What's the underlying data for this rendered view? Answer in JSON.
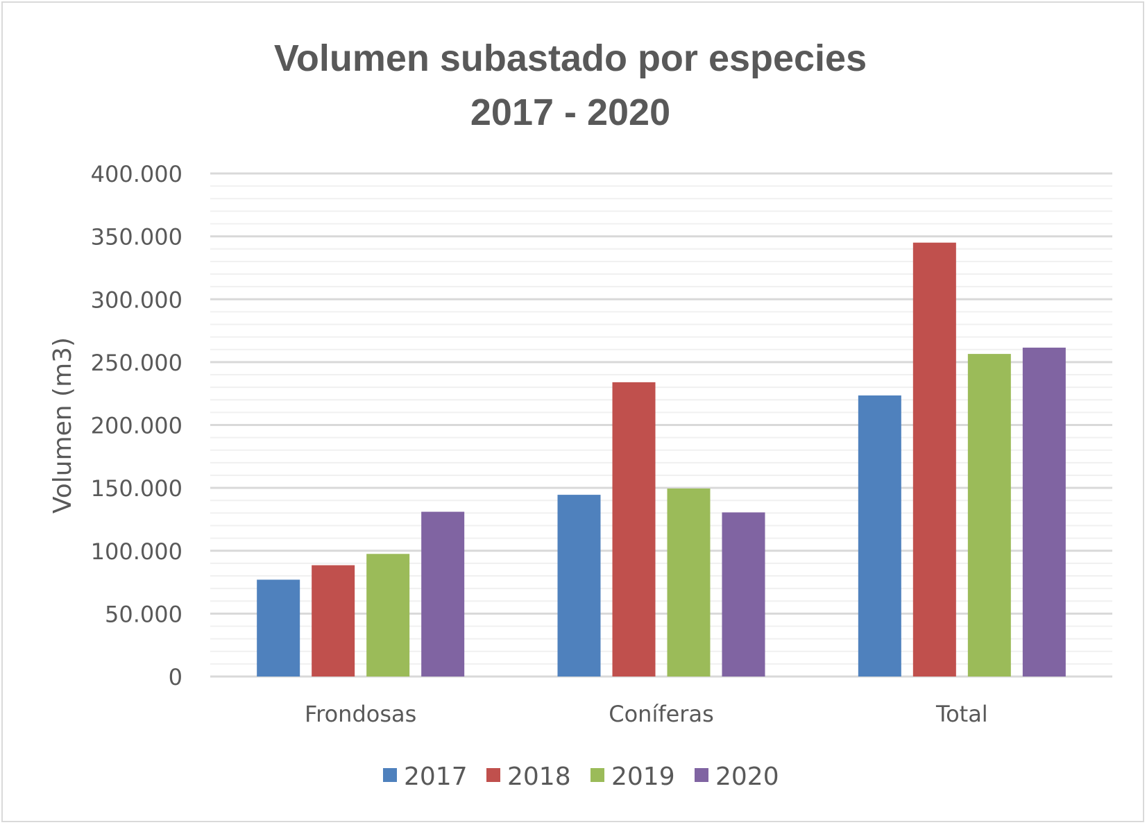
{
  "chart_data": {
    "type": "bar",
    "title_line1": "Volumen subastado por especies",
    "title_line2": "2017 - 2020",
    "xlabel": "",
    "ylabel": "Volumen (m3)",
    "ylim": [
      0,
      400000
    ],
    "ytick_step": 50000,
    "minor_step": 10000,
    "ytick_labels": [
      "0",
      "50.000",
      "100.000",
      "150.000",
      "200.000",
      "250.000",
      "300.000",
      "350.000",
      "400.000"
    ],
    "categories": [
      "Frondosas",
      "Coníferas",
      "Total"
    ],
    "series": [
      {
        "name": "2017",
        "color": "#4f81bd",
        "values": [
          77000,
          144500,
          223500
        ]
      },
      {
        "name": "2018",
        "color": "#c0504d",
        "values": [
          88500,
          234000,
          345000
        ]
      },
      {
        "name": "2019",
        "color": "#9bbb59",
        "values": [
          97500,
          149500,
          256500
        ]
      },
      {
        "name": "2020",
        "color": "#8064a2",
        "values": [
          131000,
          130500,
          261500
        ]
      }
    ],
    "grid": true,
    "legend": "bottom"
  }
}
